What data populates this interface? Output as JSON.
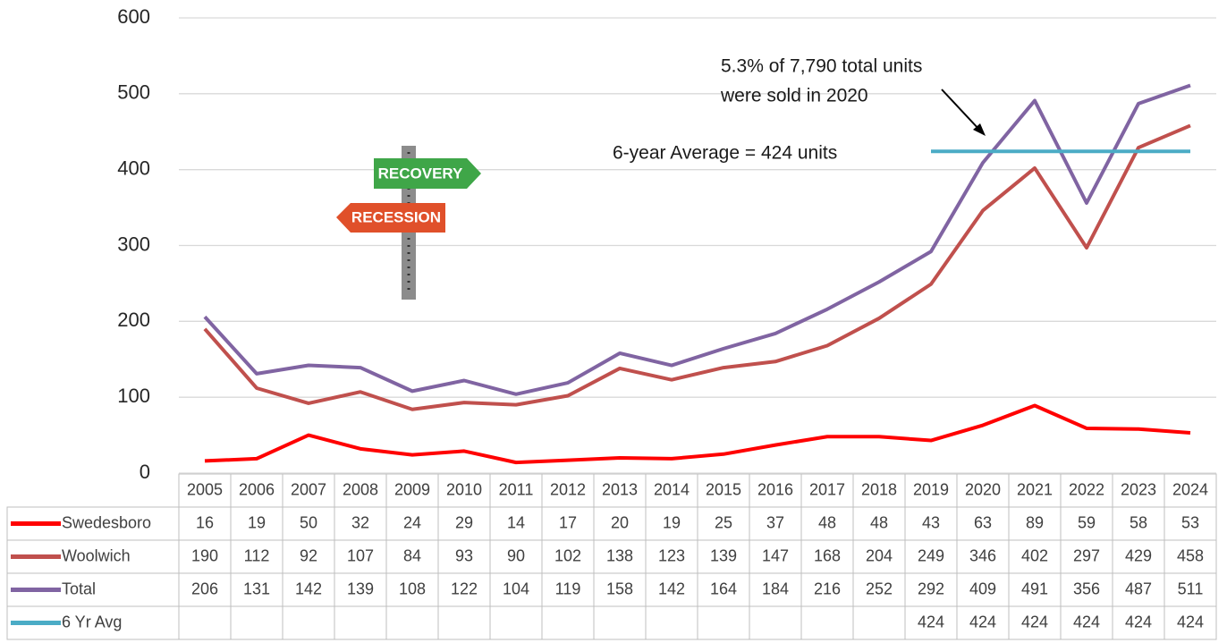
{
  "chart_data": {
    "type": "line",
    "categories": [
      "2005",
      "2006",
      "2007",
      "2008",
      "2009",
      "2010",
      "2011",
      "2012",
      "2013",
      "2014",
      "2015",
      "2016",
      "2017",
      "2018",
      "2019",
      "2020",
      "2021",
      "2022",
      "2023",
      "2024"
    ],
    "series": [
      {
        "name": "Swedesboro",
        "color": "#ff0000",
        "values": [
          16,
          19,
          50,
          32,
          24,
          29,
          14,
          17,
          20,
          19,
          25,
          37,
          48,
          48,
          43,
          63,
          89,
          59,
          58,
          53
        ]
      },
      {
        "name": "Woolwich",
        "color": "#c0504d",
        "values": [
          190,
          112,
          92,
          107,
          84,
          93,
          90,
          102,
          138,
          123,
          139,
          147,
          168,
          204,
          249,
          346,
          402,
          297,
          429,
          458
        ]
      },
      {
        "name": "Total",
        "color": "#8064a2",
        "values": [
          206,
          131,
          142,
          139,
          108,
          122,
          104,
          119,
          158,
          142,
          164,
          184,
          216,
          252,
          292,
          409,
          491,
          356,
          487,
          511
        ]
      },
      {
        "name": "6 Yr Avg",
        "color": "#4bacc6",
        "values": [
          null,
          null,
          null,
          null,
          null,
          null,
          null,
          null,
          null,
          null,
          null,
          null,
          null,
          null,
          424,
          424,
          424,
          424,
          424,
          424
        ]
      }
    ],
    "ylim": [
      0,
      600
    ],
    "yticks": [
      0,
      100,
      200,
      300,
      400,
      500,
      600
    ],
    "grid": true,
    "annotations": [
      "5.3% of 7,790 total units",
      "were sold in 2020",
      "6-year Average = 424 units"
    ],
    "sign_labels": [
      "RECOVERY",
      "RECESSION"
    ]
  }
}
